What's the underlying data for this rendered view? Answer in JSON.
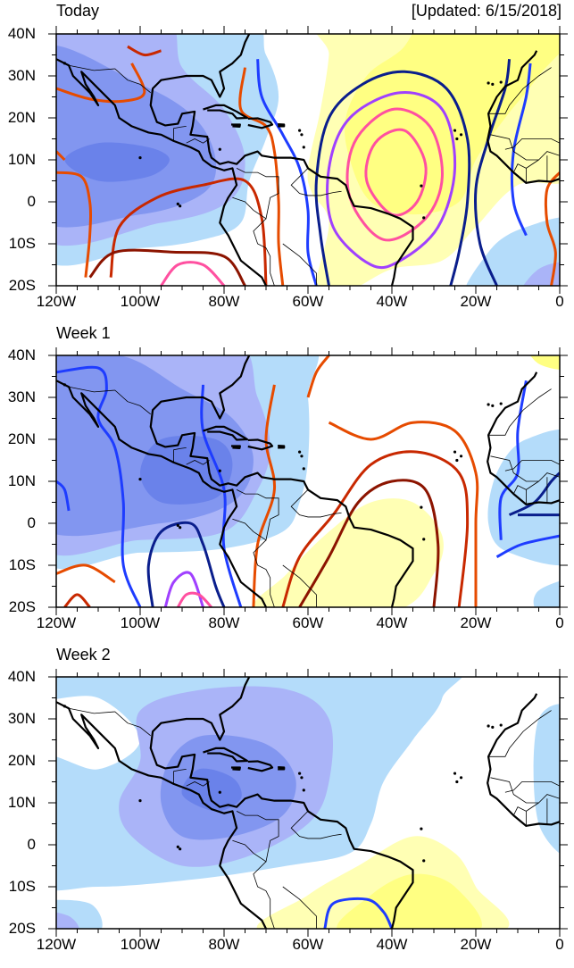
{
  "updated": "[Updated: 6/15/2018]",
  "panels": [
    {
      "title": "Today"
    },
    {
      "title": "Week 1"
    },
    {
      "title": "Week 2"
    }
  ],
  "lat_labels": [
    "40N",
    "30N",
    "20N",
    "10N",
    "0",
    "10S",
    "20S"
  ],
  "lon_labels": [
    "120W",
    "100W",
    "80W",
    "60W",
    "40W",
    "20W",
    "0"
  ],
  "colors": {
    "blue1": "#b4dcfa",
    "blue2": "#aab4f8",
    "blue3": "#8296f0",
    "blue4": "#6a82ea",
    "yellow1": "#ffffb4",
    "yellow2": "#ffff82",
    "orange": "#e64b00",
    "red": "#c82800",
    "darkred": "#8c1400",
    "pink": "#ff50a0",
    "purple": "#a040ff",
    "blue": "#1e3cff",
    "navy": "#0a1e8c"
  }
}
